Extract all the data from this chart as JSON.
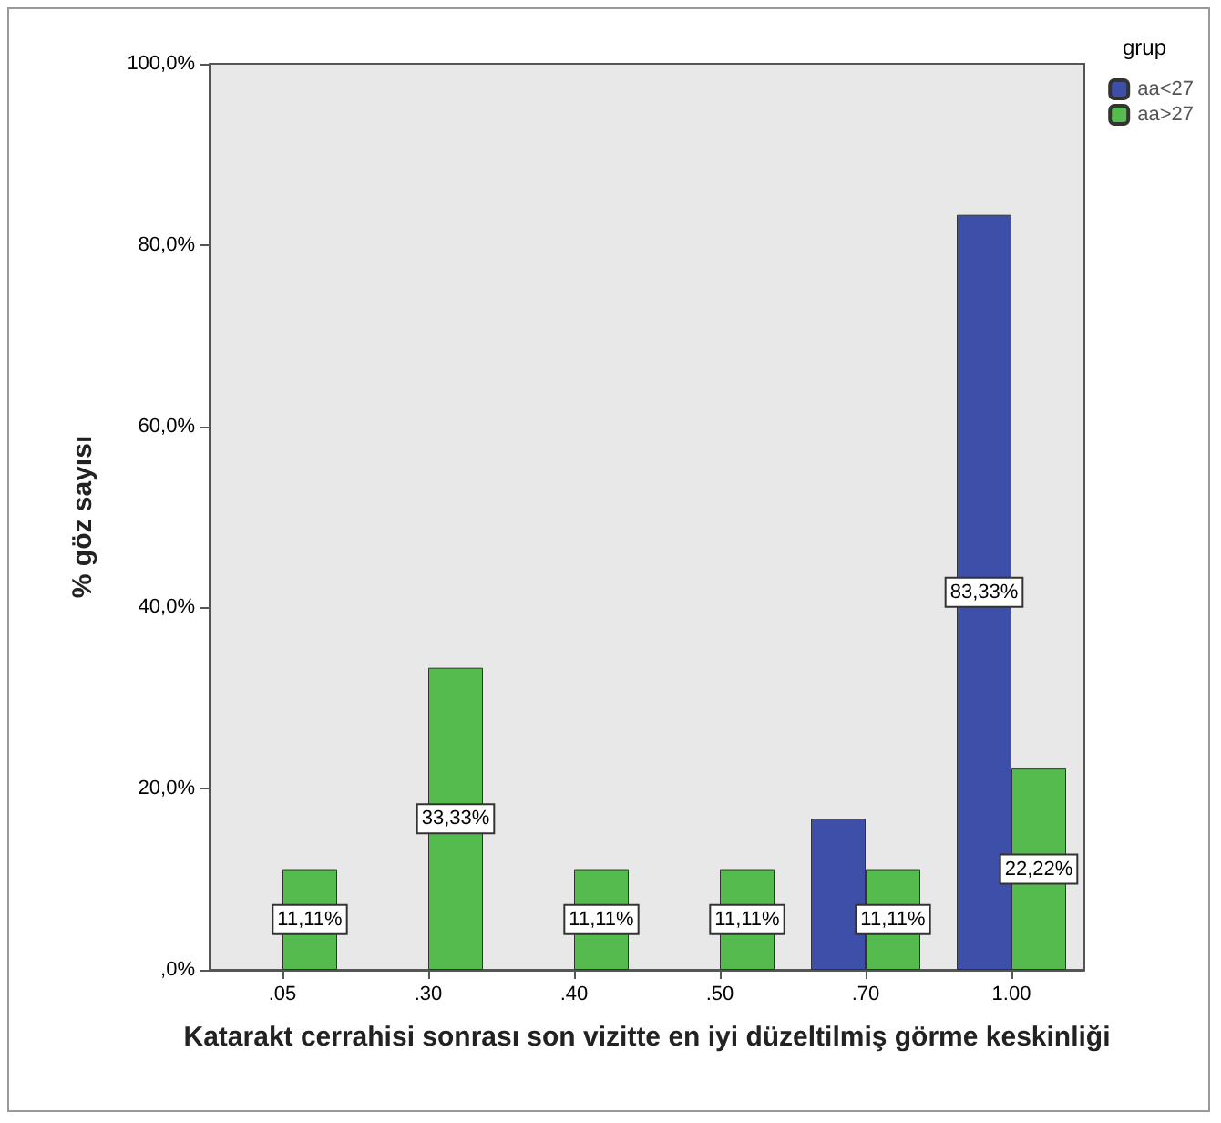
{
  "chart_data": {
    "type": "bar",
    "xlabel": "Katarakt cerrahisi sonrası son vizitte en iyi düzeltilmiş görme keskinliği",
    "ylabel": "% göz sayısı",
    "legend_title": "grup",
    "legend": "top right",
    "grid": false,
    "categories": [
      ".05",
      ".30",
      ".40",
      ".50",
      ".70",
      "1.00"
    ],
    "ylim": [
      0,
      100
    ],
    "yticks": [
      {
        "value": 0,
        "label": ",0%"
      },
      {
        "value": 20,
        "label": "20,0%"
      },
      {
        "value": 40,
        "label": "40,0%"
      },
      {
        "value": 60,
        "label": "60,0%"
      },
      {
        "value": 80,
        "label": "80,0%"
      },
      {
        "value": 100,
        "label": "100,0%"
      }
    ],
    "series": [
      {
        "name": "aa<27",
        "color": "#3d4fa8",
        "values": [
          null,
          null,
          null,
          null,
          16.7,
          83.33
        ],
        "value_labels": [
          null,
          null,
          null,
          null,
          null,
          "83,33%"
        ]
      },
      {
        "name": "aa>27",
        "color": "#55bb4e",
        "values": [
          11.11,
          33.33,
          11.11,
          11.11,
          11.11,
          22.22
        ],
        "value_labels": [
          "11,11%",
          "33,33%",
          "11,11%",
          "11,11%",
          "11,11%",
          "22,22%"
        ]
      }
    ]
  }
}
